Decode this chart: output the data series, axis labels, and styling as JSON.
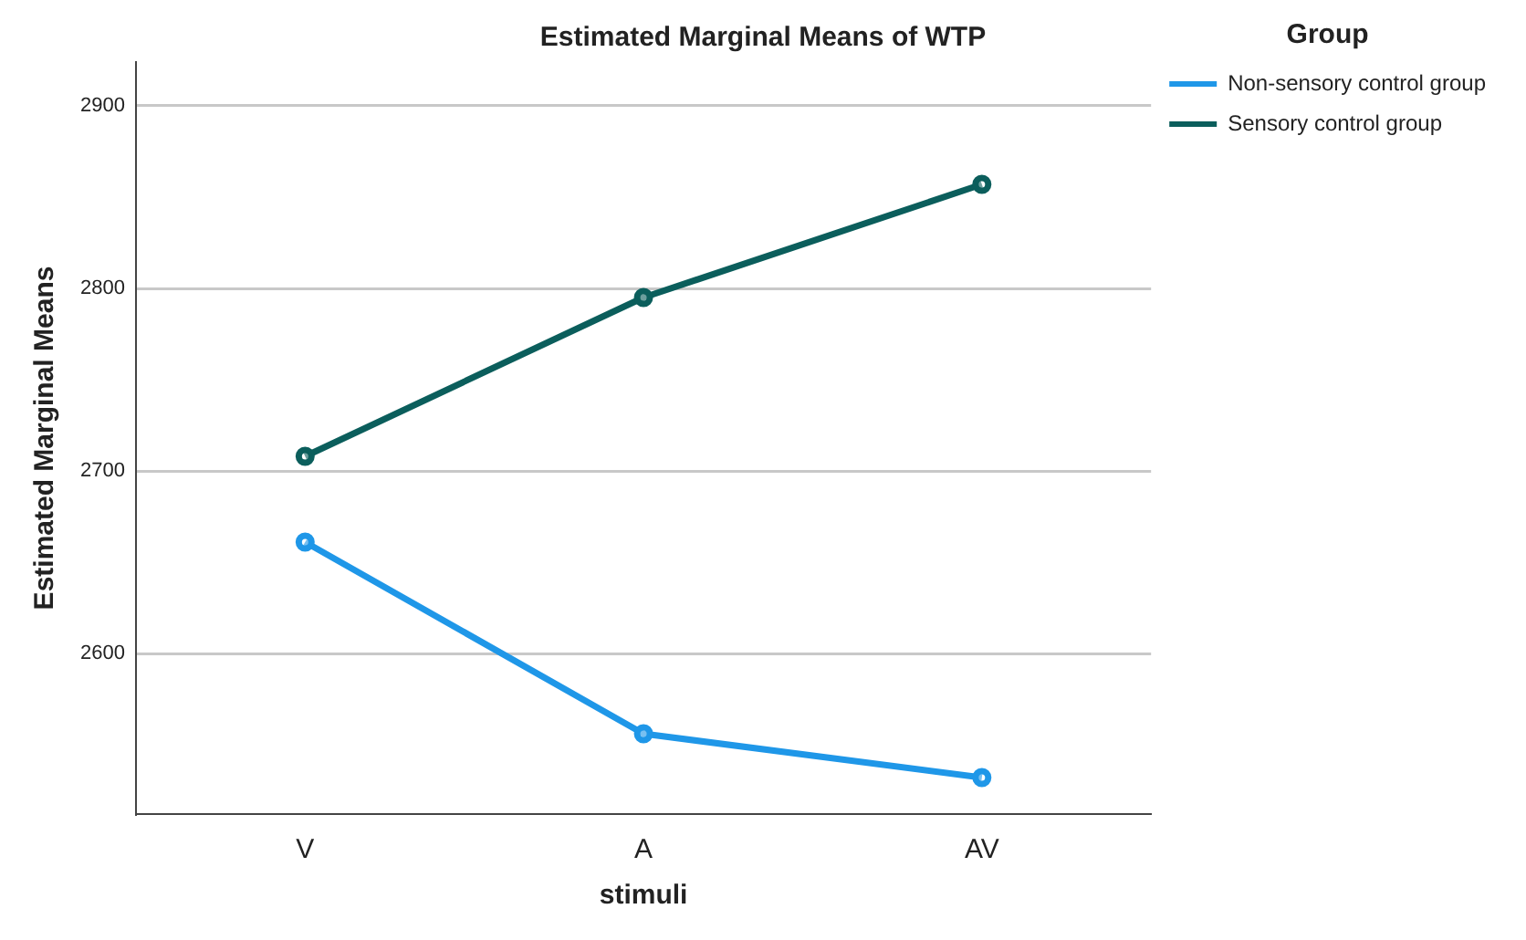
{
  "chart_data": {
    "type": "line",
    "title": "Estimated Marginal Means of WTP",
    "xlabel": "stimuli",
    "ylabel": "Estimated Marginal Means",
    "legend_title": "Group",
    "categories": [
      "V",
      "A",
      "AV"
    ],
    "series": [
      {
        "name": "Non-sensory control group",
        "color": "#1f97e8",
        "values": [
          2661,
          2556,
          2532
        ]
      },
      {
        "name": "Sensory control group",
        "color": "#0b5e5c",
        "values": [
          2708,
          2795,
          2857
        ]
      }
    ],
    "ylim": [
      2512,
      2924
    ],
    "yticks": [
      2600,
      2700,
      2800,
      2900
    ],
    "grid": "y",
    "legend": "top right",
    "marker": "circle",
    "line_style": "solid"
  }
}
